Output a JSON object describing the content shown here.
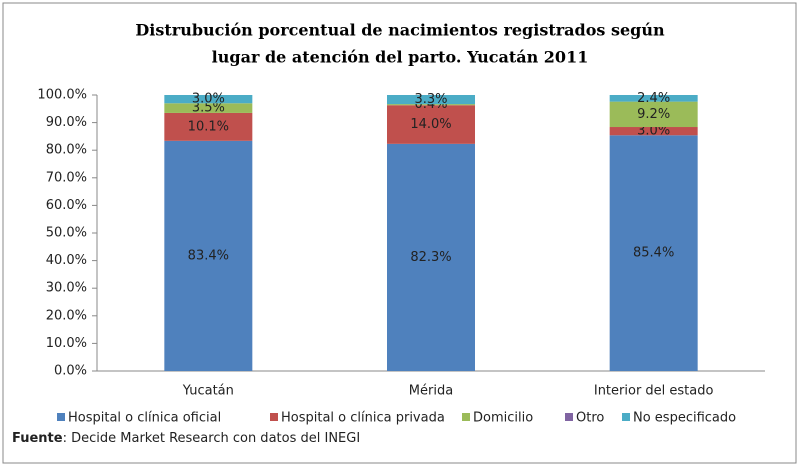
{
  "chart_data": {
    "type": "stacked_bar",
    "title": [
      "Distrubución porcentual de nacimientos registrados según",
      "lugar de atención del parto. Yucatán 2011"
    ],
    "categories": [
      "Yucatán",
      "Mérida",
      "Interior del estado"
    ],
    "series": [
      {
        "name": "Hospital o clínica oficial",
        "color": "#4f81bd",
        "values": [
          83.4,
          82.3,
          85.4
        ],
        "value_labels": [
          "83.4%",
          "82.3%",
          "85.4%"
        ]
      },
      {
        "name": "Hospital o clínica privada",
        "color": "#c0504d",
        "values": [
          10.1,
          14.0,
          3.0
        ],
        "value_labels": [
          "10.1%",
          "14.0%",
          "3.0%"
        ]
      },
      {
        "name": "Domicilio",
        "color": "#9bbb59",
        "values": [
          3.5,
          0.4,
          9.2
        ],
        "value_labels": [
          "3.5%",
          "0.4%",
          "9.2%"
        ]
      },
      {
        "name": "Otro",
        "color": "#8064a2",
        "values": [
          0,
          0,
          0
        ]
      },
      {
        "name": "No especificado",
        "color": "#4bacc6",
        "values": [
          3.0,
          3.3,
          2.4
        ],
        "value_labels": [
          "3.0%",
          "3.3%",
          "2.4%"
        ]
      }
    ],
    "ylim": [
      0,
      100
    ],
    "yticks": [
      {
        "value": 0,
        "label": "0.0%"
      },
      {
        "value": 10,
        "label": "10.0%"
      },
      {
        "value": 20,
        "label": "20.0%"
      },
      {
        "value": 30,
        "label": "30.0%"
      },
      {
        "value": 40,
        "label": "40.0%"
      },
      {
        "value": 50,
        "label": "50.0%"
      },
      {
        "value": 60,
        "label": "60.0%"
      },
      {
        "value": 70,
        "label": "70.0%"
      },
      {
        "value": 80,
        "label": "80.0%"
      },
      {
        "value": 90,
        "label": "90.0%"
      },
      {
        "value": 100,
        "label": "100.0%"
      }
    ],
    "grid": false,
    "legend": "bottom",
    "source_label": "Fuente",
    "source": ": Decide Market Research con datos del INEGI"
  }
}
